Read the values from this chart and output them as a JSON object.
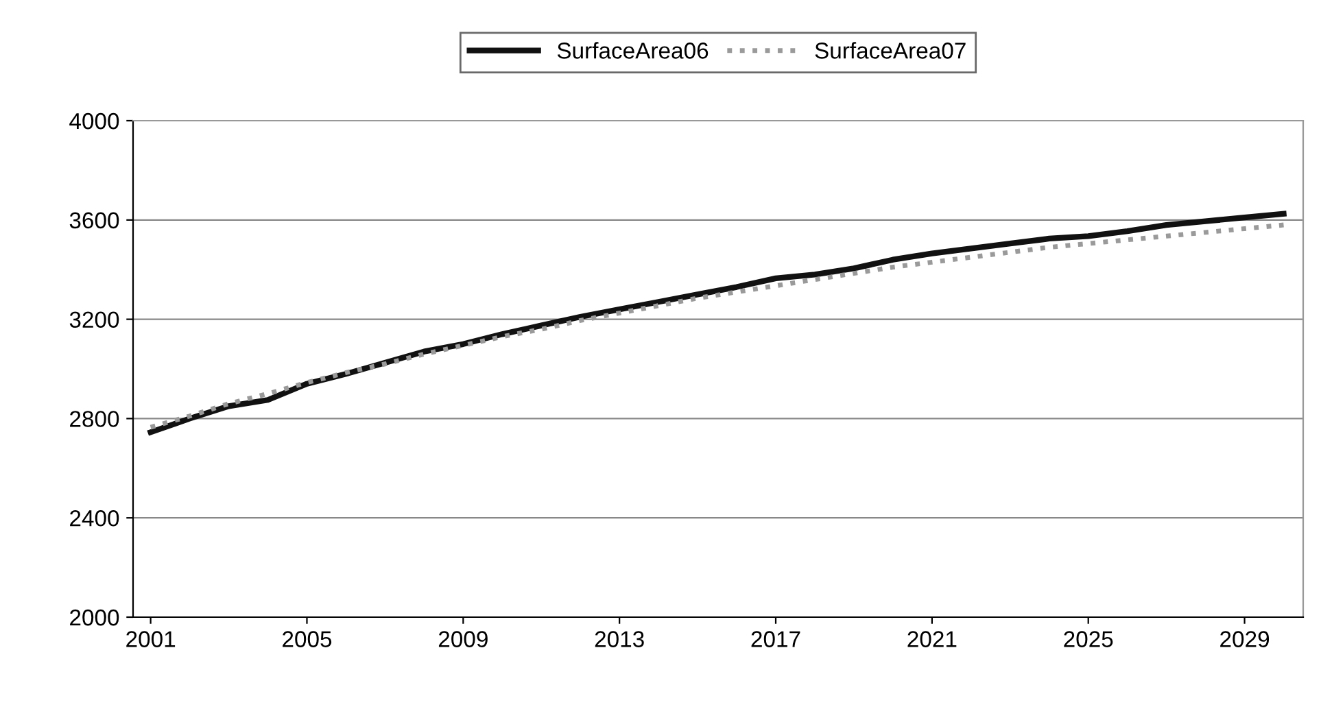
{
  "chart_data": {
    "type": "line",
    "x": [
      2001,
      2002,
      2003,
      2004,
      2005,
      2006,
      2007,
      2008,
      2009,
      2010,
      2011,
      2012,
      2013,
      2014,
      2015,
      2016,
      2017,
      2018,
      2019,
      2020,
      2021,
      2022,
      2023,
      2024,
      2025,
      2026,
      2027,
      2028,
      2029,
      2030
    ],
    "series": [
      {
        "name": "SurfaceArea06",
        "color": "#111111",
        "line_style": "solid",
        "values": [
          2745,
          2800,
          2850,
          2875,
          2940,
          2980,
          3025,
          3070,
          3100,
          3140,
          3175,
          3210,
          3240,
          3270,
          3300,
          3330,
          3365,
          3380,
          3405,
          3440,
          3465,
          3485,
          3505,
          3525,
          3535,
          3555,
          3580,
          3595,
          3610,
          3625
        ]
      },
      {
        "name": "SurfaceArea07",
        "color": "#9a9a9a",
        "line_style": "dotted",
        "values": [
          2765,
          2810,
          2860,
          2900,
          2945,
          2985,
          3020,
          3060,
          3095,
          3130,
          3160,
          3195,
          3225,
          3255,
          3285,
          3310,
          3335,
          3360,
          3385,
          3410,
          3430,
          3450,
          3470,
          3490,
          3505,
          3520,
          3535,
          3550,
          3565,
          3580
        ]
      }
    ],
    "xlim": [
      2000.55,
      2030.5
    ],
    "xticks": [
      2001,
      2005,
      2009,
      2013,
      2017,
      2021,
      2025,
      2029
    ],
    "ylim": [
      2000,
      4000
    ],
    "yticks": [
      2000,
      2400,
      2800,
      3200,
      3600,
      4000
    ],
    "grid": "y",
    "legend": "top",
    "marker": "none"
  }
}
